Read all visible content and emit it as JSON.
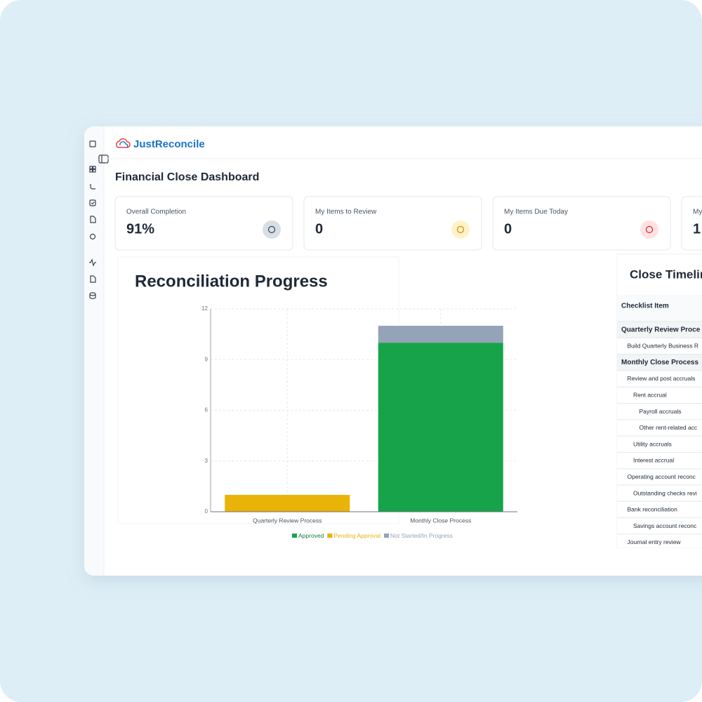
{
  "app": {
    "logo": "JustReconcile",
    "page_title": "Financial Close Dashboard"
  },
  "stats": [
    {
      "label": "Overall Completion",
      "value": "91%"
    },
    {
      "label": "My Items to Review",
      "value": "0"
    },
    {
      "label": "My Items Due Today",
      "value": "0"
    },
    {
      "label": "My",
      "value": "1"
    }
  ],
  "chart_data": {
    "type": "bar",
    "stacked": true,
    "title": "Reconciliation Progress",
    "categories": [
      "Quarterly Review Process",
      "Monthly Close Process"
    ],
    "series": [
      {
        "name": "Approved",
        "color": "#16a34a",
        "values": [
          0,
          10
        ]
      },
      {
        "name": "Pending Approval",
        "color": "#eab308",
        "values": [
          1,
          0
        ]
      },
      {
        "name": "Not Started/In Progress",
        "color": "#94a3b8",
        "values": [
          0,
          1
        ]
      }
    ],
    "ylim": [
      0,
      12
    ],
    "yticks": [
      0,
      3,
      6,
      9,
      12
    ],
    "grid": true
  },
  "timeline": {
    "title": "Close Timelin",
    "header": "Checklist Item",
    "rows": [
      "Quarterly Review Proce",
      "Build Quarterly Business R",
      "Monthly Close Process",
      "Review and post accruals",
      "Rent accrual",
      "Payroll accruals",
      "Other rent-related acc",
      "Utility accruals",
      "Interest accrual",
      "Operating account reconc",
      "Outstanding checks revi",
      "Bank reconciliation",
      "Savings account reconc",
      "Journal entry review"
    ]
  }
}
